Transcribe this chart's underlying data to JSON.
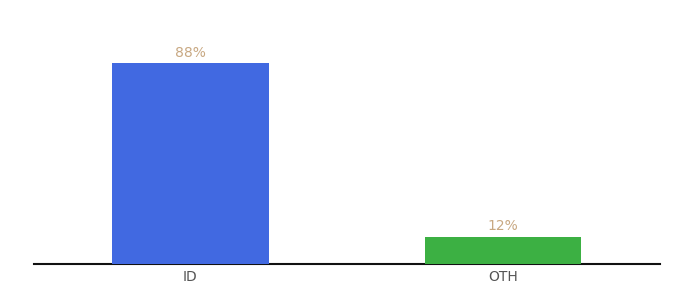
{
  "categories": [
    "ID",
    "OTH"
  ],
  "values": [
    88,
    12
  ],
  "bar_colors": [
    "#4169e1",
    "#3cb043"
  ],
  "label_color": "#c8a882",
  "label_format": [
    "88%",
    "12%"
  ],
  "background_color": "#ffffff",
  "ylim": [
    0,
    100
  ],
  "bar_width": 0.5,
  "xlabel_fontsize": 10,
  "label_fontsize": 10,
  "spine_color": "#111111",
  "x_positions": [
    0,
    1
  ]
}
